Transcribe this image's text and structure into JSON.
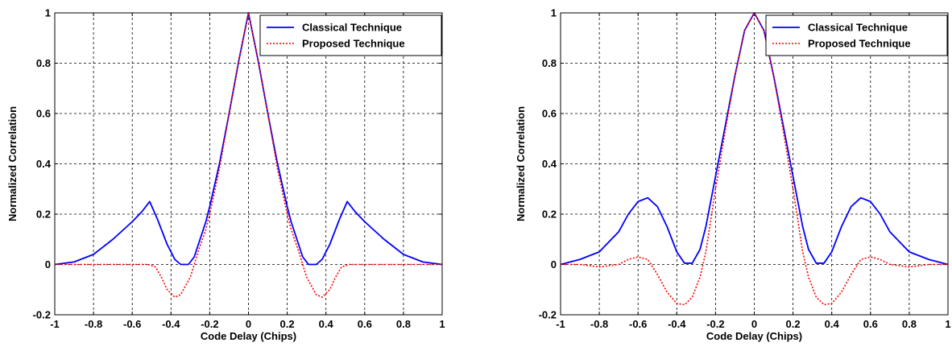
{
  "chart_data": [
    {
      "type": "line",
      "xlabel": "Code Delay (Chips)",
      "ylabel": "Normalized Correlation",
      "xlim": [
        -1,
        1
      ],
      "ylim": [
        -0.2,
        1
      ],
      "xticks": [
        -1,
        -0.8,
        -0.6,
        -0.4,
        -0.2,
        0,
        0.2,
        0.4,
        0.6,
        0.8,
        1
      ],
      "xtick_labels": [
        "-1",
        "-0.8",
        "-0.6",
        "-0.4",
        "-0.2",
        "0",
        "0.2",
        "0.4",
        "0.6",
        "0.8",
        "1"
      ],
      "yticks": [
        -0.2,
        0,
        0.2,
        0.4,
        0.6,
        0.8,
        1
      ],
      "ytick_labels": [
        "-0.2",
        "0",
        "0.2",
        "0.4",
        "0.6",
        "0.8",
        "1"
      ],
      "grid": true,
      "legend_position": "top-right",
      "series": [
        {
          "name": "Classical Technique",
          "color": "#0000ff",
          "style": "solid",
          "x": [
            -1,
            -0.9,
            -0.8,
            -0.7,
            -0.6,
            -0.55,
            -0.51,
            -0.47,
            -0.42,
            -0.38,
            -0.35,
            -0.31,
            -0.28,
            -0.25,
            -0.22,
            -0.2,
            -0.15,
            -0.1,
            -0.05,
            0,
            0.05,
            0.1,
            0.15,
            0.2,
            0.22,
            0.25,
            0.28,
            0.31,
            0.35,
            0.38,
            0.42,
            0.47,
            0.51,
            0.55,
            0.6,
            0.7,
            0.8,
            0.9,
            1
          ],
          "y": [
            0,
            0.01,
            0.04,
            0.1,
            0.17,
            0.21,
            0.25,
            0.18,
            0.08,
            0.02,
            0,
            0,
            0.03,
            0.1,
            0.17,
            0.23,
            0.4,
            0.6,
            0.81,
            1,
            0.81,
            0.6,
            0.4,
            0.23,
            0.17,
            0.1,
            0.03,
            0,
            0,
            0.02,
            0.08,
            0.18,
            0.25,
            0.21,
            0.17,
            0.1,
            0.04,
            0.01,
            0
          ]
        },
        {
          "name": "Proposed Technique",
          "color": "#ff0000",
          "style": "dotted",
          "x": [
            -1,
            -0.8,
            -0.6,
            -0.52,
            -0.48,
            -0.45,
            -0.42,
            -0.38,
            -0.35,
            -0.3,
            -0.26,
            -0.22,
            -0.2,
            -0.15,
            -0.1,
            -0.05,
            0,
            0.05,
            0.1,
            0.15,
            0.2,
            0.22,
            0.26,
            0.3,
            0.35,
            0.38,
            0.42,
            0.45,
            0.48,
            0.52,
            0.6,
            0.8,
            1
          ],
          "y": [
            0,
            0,
            0,
            0,
            -0.01,
            -0.05,
            -0.1,
            -0.13,
            -0.12,
            -0.05,
            0.05,
            0.14,
            0.2,
            0.38,
            0.6,
            0.81,
            1,
            0.81,
            0.6,
            0.38,
            0.2,
            0.14,
            0.05,
            -0.05,
            -0.12,
            -0.13,
            -0.1,
            -0.05,
            -0.01,
            0,
            0,
            0,
            0
          ]
        }
      ]
    },
    {
      "type": "line",
      "xlabel": "Code Delay (Chips)",
      "ylabel": "Normalized Correlation",
      "xlim": [
        -1,
        1
      ],
      "ylim": [
        -0.2,
        1
      ],
      "xticks": [
        -1,
        -0.8,
        -0.6,
        -0.4,
        -0.2,
        0,
        0.2,
        0.4,
        0.6,
        0.8,
        1
      ],
      "xtick_labels": [
        "-1",
        "-0.8",
        "-0.6",
        "-0.4",
        "-0.2",
        "0",
        "0.2",
        "0.4",
        "0.6",
        "0.8",
        "1"
      ],
      "yticks": [
        -0.2,
        0,
        0.2,
        0.4,
        0.6,
        0.8,
        1
      ],
      "ytick_labels": [
        "-0.2",
        "0",
        "0.2",
        "0.4",
        "0.6",
        "0.8",
        "1"
      ],
      "grid": true,
      "legend_position": "top-right",
      "series": [
        {
          "name": "Classical Technique",
          "color": "#0000ff",
          "style": "solid",
          "x": [
            -1,
            -0.9,
            -0.8,
            -0.7,
            -0.65,
            -0.6,
            -0.55,
            -0.5,
            -0.45,
            -0.4,
            -0.36,
            -0.32,
            -0.28,
            -0.25,
            -0.2,
            -0.15,
            -0.1,
            -0.05,
            0,
            0.05,
            0.1,
            0.15,
            0.2,
            0.25,
            0.28,
            0.32,
            0.36,
            0.4,
            0.45,
            0.5,
            0.55,
            0.6,
            0.65,
            0.7,
            0.8,
            0.9,
            1
          ],
          "y": [
            0,
            0.02,
            0.05,
            0.13,
            0.2,
            0.25,
            0.265,
            0.23,
            0.15,
            0.05,
            0.005,
            0.005,
            0.06,
            0.15,
            0.35,
            0.55,
            0.75,
            0.93,
            1,
            0.93,
            0.75,
            0.55,
            0.35,
            0.15,
            0.06,
            0.005,
            0.005,
            0.05,
            0.15,
            0.23,
            0.265,
            0.25,
            0.2,
            0.13,
            0.05,
            0.02,
            0
          ]
        },
        {
          "name": "Proposed Technique",
          "color": "#ff0000",
          "style": "dotted",
          "x": [
            -1,
            -0.9,
            -0.8,
            -0.7,
            -0.65,
            -0.6,
            -0.55,
            -0.5,
            -0.45,
            -0.4,
            -0.36,
            -0.32,
            -0.28,
            -0.25,
            -0.2,
            -0.15,
            -0.1,
            -0.05,
            0,
            0.05,
            0.1,
            0.15,
            0.2,
            0.25,
            0.28,
            0.32,
            0.36,
            0.4,
            0.45,
            0.5,
            0.55,
            0.6,
            0.65,
            0.7,
            0.8,
            0.9,
            1
          ],
          "y": [
            0,
            0,
            -0.01,
            0,
            0.02,
            0.03,
            0.02,
            -0.04,
            -0.11,
            -0.155,
            -0.16,
            -0.13,
            -0.05,
            0.05,
            0.3,
            0.53,
            0.75,
            0.93,
            1,
            0.93,
            0.75,
            0.53,
            0.3,
            0.05,
            -0.05,
            -0.13,
            -0.16,
            -0.155,
            -0.11,
            -0.04,
            0.02,
            0.03,
            0.02,
            0,
            -0.01,
            0,
            0
          ]
        }
      ]
    }
  ]
}
